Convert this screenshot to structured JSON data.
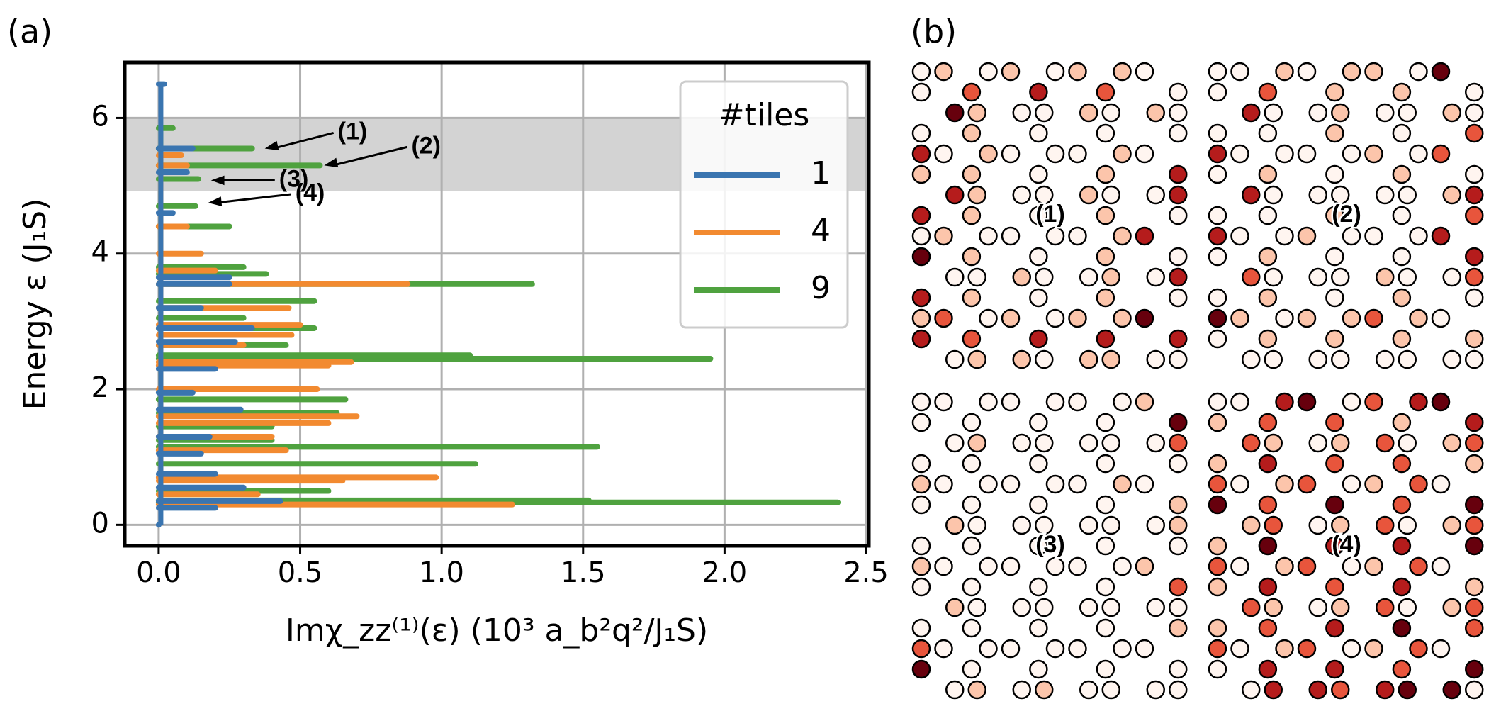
{
  "panel_labels": [
    "(a)",
    "(b)"
  ],
  "chart_data": {
    "type": "spectrum",
    "xlabel": "Imχ_zz⁽¹⁾(ε)  (10³ a_b²q²/J₁S)",
    "ylabel": "Energy ε (J₁S)",
    "xlim": [
      -0.12,
      2.51
    ],
    "ylim": [
      -0.31,
      6.82
    ],
    "xticks": [
      {
        "value": 0,
        "label": "0.0"
      },
      0.5,
      {
        "value": 1,
        "label": "1.0"
      },
      1.5,
      {
        "value": 2,
        "label": "2.0"
      },
      2.5
    ],
    "yticks": [
      0,
      2,
      4,
      6
    ],
    "grid": true,
    "band": [
      4.92,
      6.0
    ],
    "legend_title": "#tiles",
    "legend": "upper right",
    "series": [
      {
        "name": "1",
        "color": "#3a75b0",
        "energy": [
          0.0,
          0.25,
          0.35,
          0.55,
          0.75,
          1.05,
          1.3,
          1.7,
          1.95,
          2.3,
          2.7,
          2.9,
          3.2,
          3.55,
          3.65,
          4.6,
          5.2,
          5.55,
          6.5
        ],
        "values": [
          0.0,
          0.2,
          0.43,
          0.3,
          0.2,
          0.15,
          0.18,
          0.29,
          0.12,
          0.2,
          0.27,
          0.33,
          0.15,
          0.25,
          0.25,
          0.05,
          0.1,
          0.12,
          0.02
        ]
      },
      {
        "name": "4",
        "color": "#f28a30",
        "energy": [
          0.3,
          0.45,
          0.65,
          0.7,
          1.1,
          1.3,
          1.5,
          1.6,
          2.0,
          2.35,
          2.4,
          2.65,
          2.8,
          2.95,
          3.2,
          3.55,
          3.75,
          4.0,
          4.4,
          5.3,
          5.45
        ],
        "values": [
          1.25,
          0.35,
          0.65,
          0.98,
          0.45,
          0.4,
          0.6,
          0.7,
          0.56,
          0.6,
          0.68,
          0.3,
          0.47,
          0.5,
          0.46,
          0.88,
          0.2,
          0.15,
          0.1,
          0.1,
          0.08
        ]
      },
      {
        "name": "9",
        "color": "#4fa23f",
        "energy": [
          0.33,
          0.36,
          0.5,
          0.9,
          1.15,
          1.25,
          1.45,
          1.65,
          1.85,
          2.45,
          2.5,
          2.65,
          2.9,
          3.05,
          3.3,
          3.55,
          3.7,
          3.8,
          4.4,
          4.7,
          5.1,
          5.3,
          5.55,
          5.85
        ],
        "values": [
          2.4,
          1.52,
          0.6,
          1.12,
          1.55,
          0.4,
          0.4,
          0.63,
          0.66,
          1.95,
          1.1,
          0.45,
          0.55,
          0.3,
          0.55,
          1.32,
          0.38,
          0.3,
          0.25,
          0.13,
          0.14,
          0.57,
          0.33,
          0.05
        ]
      }
    ],
    "annotations": [
      {
        "text": "(1)",
        "xy": [
          0.37,
          5.55
        ]
      },
      {
        "text": "(2)",
        "xy": [
          0.58,
          5.3
        ]
      },
      {
        "text": "(3)",
        "xy": [
          0.18,
          5.08
        ]
      },
      {
        "text": "(4)",
        "xy": [
          0.17,
          4.75
        ]
      }
    ]
  },
  "lattices": {
    "colors": [
      "#fff5f0",
      "#fcc5ab",
      "#e8553c",
      "#b51c1c",
      "#67000d"
    ],
    "panels": [
      {
        "label": "(1)",
        "sites": [
          [
            0,
            1,
            0,
            1,
            0,
            1,
            1,
            0
          ],
          [
            0,
            2,
            3,
            2,
            0
          ],
          [
            4,
            1,
            0,
            0,
            1,
            0,
            1,
            0
          ],
          [
            0,
            1,
            0,
            0,
            0
          ],
          [
            3,
            0,
            1,
            0,
            0,
            0,
            1,
            0
          ],
          [
            1,
            1,
            0,
            1,
            3
          ],
          [
            3,
            1,
            0,
            0,
            1,
            0,
            0,
            3
          ],
          [
            3,
            1,
            0,
            1,
            0
          ],
          [
            0,
            1,
            0,
            0,
            0,
            0,
            1,
            3
          ],
          [
            4,
            1,
            0,
            1,
            0
          ],
          [
            0,
            0,
            1,
            0,
            0,
            1,
            0,
            3
          ],
          [
            3,
            1,
            0,
            1,
            0
          ],
          [
            1,
            2,
            0,
            1,
            0,
            1,
            1,
            4
          ],
          [
            3,
            2,
            3,
            3,
            3
          ],
          [
            0,
            1,
            1,
            0,
            1,
            1,
            0,
            0
          ]
        ]
      },
      {
        "label": "(2)",
        "sites": [
          [
            0,
            0,
            1,
            0,
            1,
            1,
            0,
            4
          ],
          [
            0,
            2,
            1,
            1,
            0
          ],
          [
            3,
            0,
            0,
            1,
            0,
            0,
            1,
            0
          ],
          [
            0,
            0,
            1,
            0,
            2
          ],
          [
            3,
            0,
            0,
            0,
            0,
            1,
            0,
            2
          ],
          [
            0,
            1,
            0,
            1,
            0
          ],
          [
            3,
            0,
            0,
            0,
            0,
            0,
            1,
            3
          ],
          [
            0,
            0,
            1,
            0,
            2
          ],
          [
            3,
            0,
            0,
            1,
            0,
            0,
            0,
            3
          ],
          [
            0,
            1,
            0,
            0,
            3
          ],
          [
            2,
            0,
            0,
            0,
            1,
            0,
            0,
            2
          ],
          [
            0,
            1,
            0,
            1,
            0
          ],
          [
            4,
            1,
            0,
            1,
            1,
            2,
            1,
            0
          ],
          [
            0,
            1,
            1,
            1,
            1
          ],
          [
            0,
            0,
            0,
            0,
            0,
            0,
            0,
            0
          ]
        ]
      },
      {
        "label": "(3)",
        "sites": [
          [
            0,
            0,
            0,
            0,
            0,
            0,
            0,
            1
          ],
          [
            0,
            0,
            0,
            0,
            4
          ],
          [
            0,
            1,
            0,
            0,
            0,
            0,
            0,
            2
          ],
          [
            0,
            0,
            0,
            0,
            0
          ],
          [
            1,
            0,
            0,
            0,
            0,
            0,
            1,
            0
          ],
          [
            0,
            0,
            0,
            0,
            1
          ],
          [
            1,
            0,
            0,
            0,
            0,
            0,
            0,
            1
          ],
          [
            0,
            0,
            0,
            0,
            0
          ],
          [
            1,
            0,
            0,
            0,
            0,
            0,
            0,
            1
          ],
          [
            0,
            0,
            0,
            0,
            2
          ],
          [
            1,
            0,
            0,
            0,
            0,
            0,
            0,
            0
          ],
          [
            0,
            0,
            0,
            0,
            1
          ],
          [
            2,
            0,
            0,
            0,
            0,
            0,
            0,
            0
          ],
          [
            4,
            0,
            0,
            0,
            0
          ],
          [
            0,
            1,
            0,
            1,
            0,
            0,
            0,
            0
          ]
        ]
      },
      {
        "label": "(4)",
        "sites": [
          [
            0,
            0,
            3,
            4,
            0,
            2,
            3,
            4
          ],
          [
            1,
            2,
            2,
            1,
            3
          ],
          [
            2,
            1,
            0,
            1,
            2,
            0,
            1,
            2
          ],
          [
            1,
            3,
            2,
            2,
            1
          ],
          [
            2,
            0,
            1,
            2,
            0,
            1,
            2,
            0
          ],
          [
            4,
            2,
            4,
            2,
            4
          ],
          [
            1,
            2,
            0,
            1,
            2,
            0,
            1,
            2
          ],
          [
            1,
            4,
            3,
            3,
            4
          ],
          [
            2,
            0,
            1,
            2,
            0,
            1,
            2,
            0
          ],
          [
            1,
            3,
            2,
            3,
            1
          ],
          [
            2,
            1,
            0,
            1,
            2,
            0,
            1,
            2
          ],
          [
            1,
            2,
            3,
            4,
            2
          ],
          [
            2,
            0,
            1,
            2,
            0,
            1,
            2,
            0
          ],
          [
            0,
            3,
            3,
            2,
            4
          ],
          [
            0,
            3,
            3,
            2,
            3,
            4,
            4,
            0
          ]
        ]
      }
    ]
  }
}
